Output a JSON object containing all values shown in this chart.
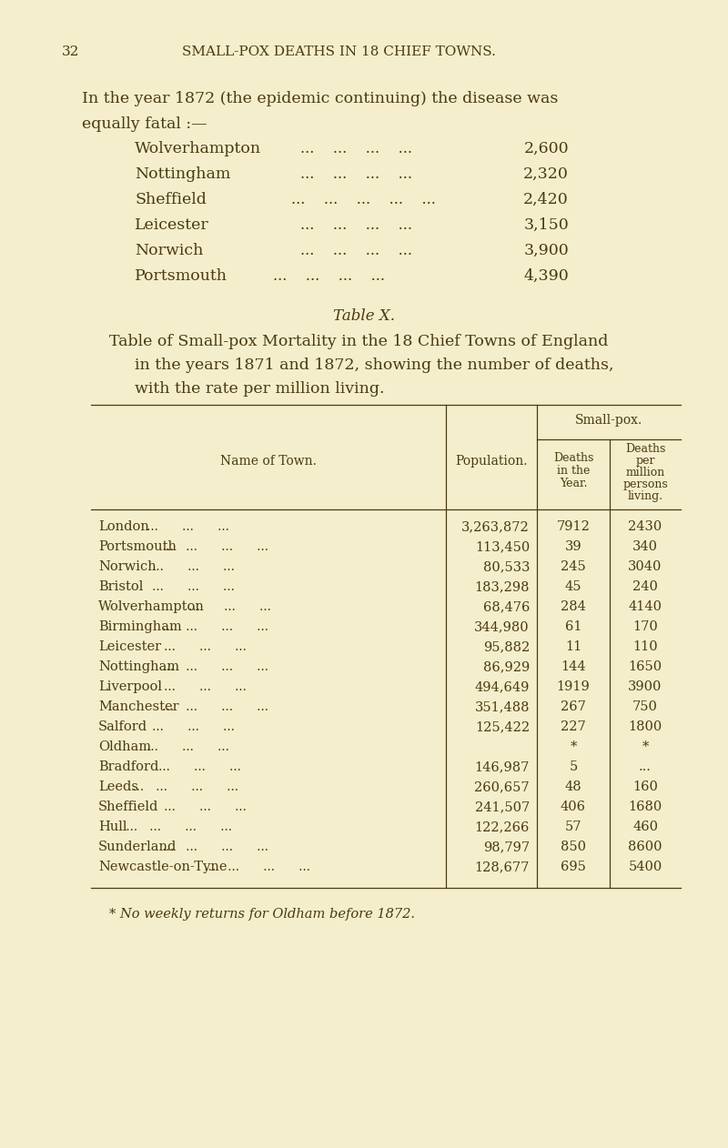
{
  "bg_color": "#f5eecc",
  "text_color": "#4a3a10",
  "page_number": "32",
  "header": "SMALL-POX DEATHS IN 18 CHIEF TOWNS.",
  "intro_line1": "In the year 1872 (the epidemic continuing) the disease was",
  "intro_line2": "equally fatal :—",
  "list_items": [
    [
      "Wolverhampton",
      "2,600"
    ],
    [
      "Nottingham",
      "2,320"
    ],
    [
      "Sheffield",
      "2,420"
    ],
    [
      "Leicester",
      "3,150"
    ],
    [
      "Norwich",
      "3,900"
    ],
    [
      "Portsmouth...",
      "4,390"
    ]
  ],
  "table_label": "Table X.",
  "table_title_line1": "Table of Small-pox Mortality in the 18 Chief Towns of England",
  "table_title_line2": "in the years 1871 and 1872, showing the number of deaths,",
  "table_title_line3": "with the rate per million living.",
  "smallpox_header": "Small-pox.",
  "col_header1": "Name of Town.",
  "col_header2": "Population.",
  "col_header3a": "Deaths",
  "col_header3b": "in the",
  "col_header3c": "Year.",
  "col_header4a": "Deaths",
  "col_header4b": "per",
  "col_header4c": "million",
  "col_header4d": "persons",
  "col_header4e": "living.",
  "table_rows": [
    [
      "London",
      "3,263,872",
      "7912",
      "2430"
    ],
    [
      "Portsmouth ...",
      "113,450",
      "39",
      "340"
    ],
    [
      "Norwich",
      "80,533",
      "245",
      "3040"
    ],
    [
      "Bristol",
      "183,298",
      "45",
      "240"
    ],
    [
      "Wolverhampton",
      "68,476",
      "284",
      "4140"
    ],
    [
      "Birmingham ...",
      "344,980",
      "61",
      "170"
    ],
    [
      "Leicester",
      "95,882",
      "11",
      "110"
    ],
    [
      "Nottingham ...",
      "86,929",
      "144",
      "1650"
    ],
    [
      "Liverpool",
      "494,649",
      "1919",
      "3900"
    ],
    [
      "Manchester ...",
      "351,488",
      "267",
      "750"
    ],
    [
      "Salford",
      "125,422",
      "227",
      "1800"
    ],
    [
      "Oldham",
      "",
      "*",
      "*"
    ],
    [
      "Bradford",
      "146,987",
      "5",
      "..."
    ],
    [
      "Leeds...",
      "260,657",
      "48",
      "160"
    ],
    [
      "Sheffield",
      "241,507",
      "406",
      "1680"
    ],
    [
      "Hull ...",
      "122,266",
      "57",
      "460"
    ],
    [
      "Sunderland ...",
      "98,797",
      "850",
      "8600"
    ],
    [
      "Newcastle-on-Tyne...",
      "128,677",
      "695",
      "5400"
    ]
  ],
  "row_dots": [
    "London",
    "Norwich",
    "Bristol",
    "Leicester",
    "Liverpool",
    "Salford",
    "Bradford",
    "Sheffield"
  ],
  "footnote": "* No weekly returns for Oldham before 1872."
}
